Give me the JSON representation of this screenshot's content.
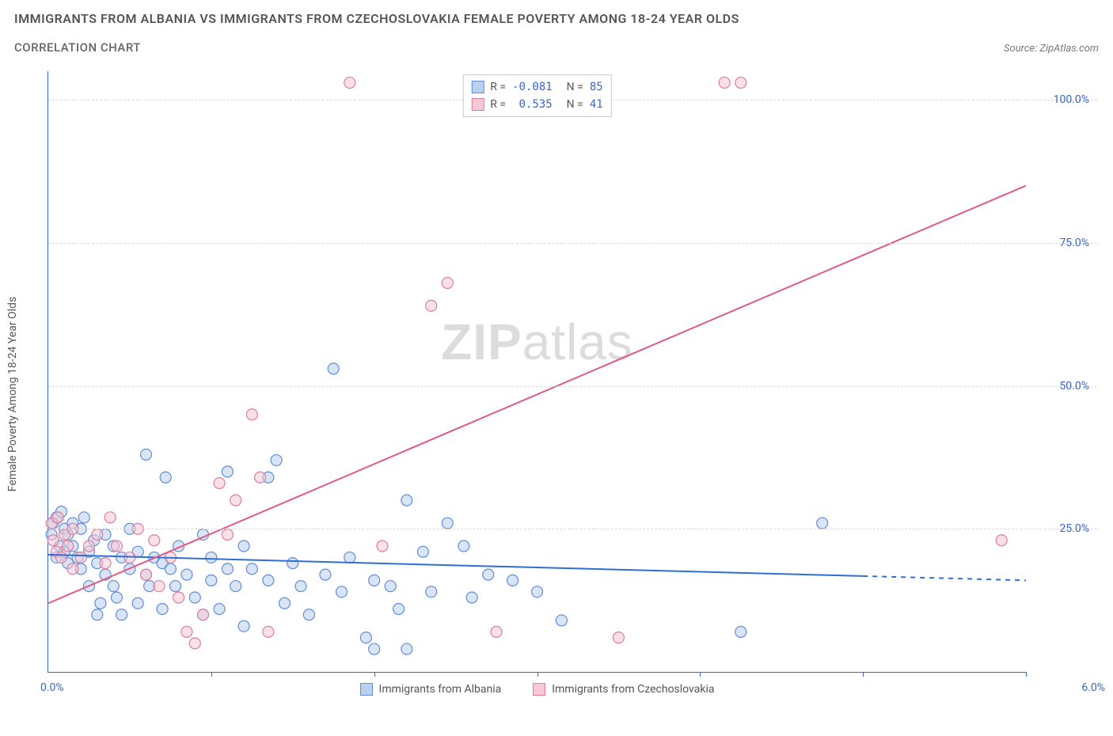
{
  "title": "IMMIGRANTS FROM ALBANIA VS IMMIGRANTS FROM CZECHOSLOVAKIA FEMALE POVERTY AMONG 18-24 YEAR OLDS",
  "subtitle": "CORRELATION CHART",
  "source": "Source: ZipAtlas.com",
  "y_axis_label": "Female Poverty Among 18-24 Year Olds",
  "watermark_bold": "ZIP",
  "watermark_rest": "atlas",
  "chart": {
    "type": "scatter",
    "xlim": [
      0.0,
      6.0
    ],
    "ylim": [
      0.0,
      105.0
    ],
    "x_min_label": "0.0%",
    "x_max_label": "6.0%",
    "y_ticks": [
      25.0,
      50.0,
      75.0,
      100.0
    ],
    "y_tick_labels": [
      "25.0%",
      "50.0%",
      "75.0%",
      "100.0%"
    ],
    "x_tick_positions": [
      1.0,
      2.0,
      3.0,
      4.0,
      5.0,
      6.0
    ],
    "grid_color": "#d9d9d9",
    "axis_color": "#3a66c8",
    "background_color": "#ffffff",
    "marker_radius": 7,
    "marker_stroke_width": 1.2,
    "trend_line_width": 2,
    "trend_dash_segment_x": 5.0
  },
  "series": [
    {
      "name": "Immigrants from Albania",
      "fill": "#b9d0f0",
      "stroke": "#5f8fd8",
      "fill_opacity": 0.55,
      "trend_color": "#2f6fd0",
      "trend": {
        "x1": 0.0,
        "y1": 20.5,
        "x2": 6.0,
        "y2": 16.0
      },
      "r_label": "R =",
      "r_value": "-0.081",
      "n_label": "N =",
      "n_value": "85",
      "points": [
        [
          0.02,
          24
        ],
        [
          0.03,
          26
        ],
        [
          0.05,
          27
        ],
        [
          0.05,
          20
        ],
        [
          0.07,
          22
        ],
        [
          0.08,
          28
        ],
        [
          0.1,
          21
        ],
        [
          0.1,
          25
        ],
        [
          0.12,
          24
        ],
        [
          0.12,
          19
        ],
        [
          0.15,
          22
        ],
        [
          0.15,
          26
        ],
        [
          0.18,
          20
        ],
        [
          0.2,
          18
        ],
        [
          0.2,
          25
        ],
        [
          0.22,
          27
        ],
        [
          0.25,
          21
        ],
        [
          0.25,
          15
        ],
        [
          0.28,
          23
        ],
        [
          0.3,
          19
        ],
        [
          0.3,
          10
        ],
        [
          0.32,
          12
        ],
        [
          0.35,
          24
        ],
        [
          0.35,
          17
        ],
        [
          0.4,
          22
        ],
        [
          0.4,
          15
        ],
        [
          0.42,
          13
        ],
        [
          0.45,
          20
        ],
        [
          0.45,
          10
        ],
        [
          0.5,
          18
        ],
        [
          0.5,
          25
        ],
        [
          0.55,
          21
        ],
        [
          0.55,
          12
        ],
        [
          0.6,
          17
        ],
        [
          0.6,
          38
        ],
        [
          0.62,
          15
        ],
        [
          0.65,
          20
        ],
        [
          0.7,
          19
        ],
        [
          0.7,
          11
        ],
        [
          0.72,
          34
        ],
        [
          0.75,
          18
        ],
        [
          0.78,
          15
        ],
        [
          0.8,
          22
        ],
        [
          0.85,
          17
        ],
        [
          0.9,
          13
        ],
        [
          0.95,
          24
        ],
        [
          0.95,
          10
        ],
        [
          1.0,
          20
        ],
        [
          1.0,
          16
        ],
        [
          1.05,
          11
        ],
        [
          1.1,
          18
        ],
        [
          1.1,
          35
        ],
        [
          1.15,
          15
        ],
        [
          1.2,
          22
        ],
        [
          1.2,
          8
        ],
        [
          1.25,
          18
        ],
        [
          1.35,
          34
        ],
        [
          1.35,
          16
        ],
        [
          1.4,
          37
        ],
        [
          1.45,
          12
        ],
        [
          1.5,
          19
        ],
        [
          1.55,
          15
        ],
        [
          1.6,
          10
        ],
        [
          1.7,
          17
        ],
        [
          1.75,
          53
        ],
        [
          1.8,
          14
        ],
        [
          1.85,
          20
        ],
        [
          1.95,
          6
        ],
        [
          2.0,
          16
        ],
        [
          2.0,
          4
        ],
        [
          2.1,
          15
        ],
        [
          2.15,
          11
        ],
        [
          2.2,
          30
        ],
        [
          2.2,
          4
        ],
        [
          2.3,
          21
        ],
        [
          2.35,
          14
        ],
        [
          2.45,
          26
        ],
        [
          2.55,
          22
        ],
        [
          2.6,
          13
        ],
        [
          2.7,
          17
        ],
        [
          2.85,
          16
        ],
        [
          3.0,
          14
        ],
        [
          3.15,
          9
        ],
        [
          4.25,
          7
        ],
        [
          4.75,
          26
        ]
      ]
    },
    {
      "name": "Immigrants from Czechoslovakia",
      "fill": "#f6c9d4",
      "stroke": "#df7d9d",
      "fill_opacity": 0.55,
      "trend_color": "#e05a85",
      "trend": {
        "x1": 0.0,
        "y1": 12.0,
        "x2": 6.0,
        "y2": 85.0
      },
      "r_label": "R =",
      "r_value": " 0.535",
      "n_label": "N =",
      "n_value": "41",
      "points": [
        [
          0.02,
          26
        ],
        [
          0.03,
          23
        ],
        [
          0.05,
          21
        ],
        [
          0.06,
          27
        ],
        [
          0.08,
          20
        ],
        [
          0.1,
          24
        ],
        [
          0.12,
          22
        ],
        [
          0.15,
          18
        ],
        [
          0.15,
          25
        ],
        [
          0.2,
          20
        ],
        [
          0.25,
          22
        ],
        [
          0.3,
          24
        ],
        [
          0.35,
          19
        ],
        [
          0.38,
          27
        ],
        [
          0.42,
          22
        ],
        [
          0.5,
          20
        ],
        [
          0.55,
          25
        ],
        [
          0.6,
          17
        ],
        [
          0.65,
          23
        ],
        [
          0.68,
          15
        ],
        [
          0.75,
          20
        ],
        [
          0.8,
          13
        ],
        [
          0.85,
          7
        ],
        [
          0.9,
          5
        ],
        [
          0.95,
          10
        ],
        [
          1.05,
          33
        ],
        [
          1.1,
          24
        ],
        [
          1.15,
          30
        ],
        [
          1.25,
          45
        ],
        [
          1.3,
          34
        ],
        [
          1.35,
          7
        ],
        [
          1.85,
          103
        ],
        [
          2.05,
          22
        ],
        [
          2.35,
          64
        ],
        [
          2.45,
          68
        ],
        [
          2.75,
          7
        ],
        [
          3.2,
          103
        ],
        [
          3.5,
          6
        ],
        [
          4.15,
          103
        ],
        [
          4.25,
          103
        ],
        [
          5.85,
          23
        ]
      ]
    }
  ],
  "legend_bottom": [
    {
      "label": "Immigrants from Albania",
      "fill": "#b9d0f0",
      "stroke": "#5f8fd8"
    },
    {
      "label": "Immigrants from Czechoslovakia",
      "fill": "#f6c9d4",
      "stroke": "#df7d9d"
    }
  ]
}
